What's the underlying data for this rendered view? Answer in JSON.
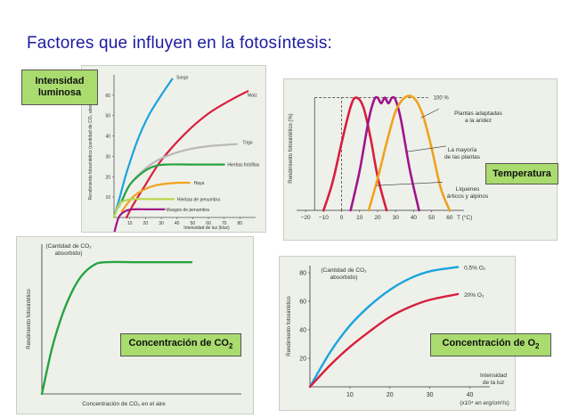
{
  "page": {
    "title": "Factores que influyen en la fotosíntesis:"
  },
  "tags": {
    "light": "Intensidad luminosa",
    "temperature": "Temperatura",
    "co2": "Concentración de CO",
    "co2_sub": "2",
    "o2": "Concentración de O",
    "o2_sub": "2"
  },
  "colors": {
    "tag_bg": "#a9db6e",
    "panel_bg": "#eef1ea",
    "blue": "#1aa3e0",
    "red": "#d81e3c",
    "gray": "#b9b9b9",
    "green": "#27a342",
    "orange": "#f0a21e",
    "lime": "#b9d64a",
    "purple": "#a0148a",
    "title": "#1a1aa0"
  },
  "chart_data": [
    {
      "id": "light",
      "type": "line",
      "ylabel": "Rendimiento fotosintético (cantidad de CO₂ absorbido)",
      "xlabel": "Intensidad de luz (klux)",
      "xlim": [
        0,
        90
      ],
      "ylim": [
        0,
        70
      ],
      "xticks": [
        10,
        20,
        30,
        40,
        50,
        60,
        70,
        80
      ],
      "yticks": [
        10,
        20,
        30,
        40,
        50,
        60
      ],
      "series": [
        {
          "name": "Sorgo",
          "color": "blue",
          "points": [
            [
              0,
              0
            ],
            [
              3,
              8
            ],
            [
              8,
              22
            ],
            [
              15,
              38
            ],
            [
              22,
              50
            ],
            [
              30,
              60
            ],
            [
              37,
              68
            ]
          ]
        },
        {
          "name": "Maíz",
          "color": "red",
          "points": [
            [
              8,
              0
            ],
            [
              12,
              6
            ],
            [
              20,
              16
            ],
            [
              30,
              28
            ],
            [
              45,
              41
            ],
            [
              60,
              51
            ],
            [
              75,
              58
            ],
            [
              85,
              62
            ]
          ]
        },
        {
          "name": "Trigo",
          "color": "gray",
          "points": [
            [
              3,
              5
            ],
            [
              10,
              16
            ],
            [
              20,
              24
            ],
            [
              30,
              29
            ],
            [
              45,
              33
            ],
            [
              60,
              35
            ],
            [
              78,
              36
            ]
          ]
        },
        {
          "name": "Hierbas fotófilas",
          "color": "green",
          "points": [
            [
              5,
              8
            ],
            [
              10,
              16
            ],
            [
              18,
              22
            ],
            [
              25,
              25
            ],
            [
              33,
              26
            ],
            [
              50,
              26
            ],
            [
              70,
              26
            ]
          ]
        },
        {
          "name": "Haya",
          "color": "orange",
          "points": [
            [
              5,
              3
            ],
            [
              12,
              10
            ],
            [
              20,
              14
            ],
            [
              28,
              16
            ],
            [
              40,
              17
            ],
            [
              48,
              17
            ]
          ]
        },
        {
          "name": "Hierbas de penumbra",
          "color": "lime",
          "points": [
            [
              0,
              0
            ],
            [
              3,
              6
            ],
            [
              6,
              8
            ],
            [
              12,
              9
            ],
            [
              25,
              9
            ],
            [
              38,
              9
            ]
          ]
        },
        {
          "name": "Musgos de penumbra",
          "color": "purple",
          "points": [
            [
              0,
              -8
            ],
            [
              3,
              0
            ],
            [
              7,
              3
            ],
            [
              12,
              4
            ],
            [
              22,
              4
            ],
            [
              32,
              4
            ]
          ]
        }
      ]
    },
    {
      "id": "temperature",
      "type": "line",
      "ylabel": "Rendimiento fotosintético (%)",
      "xlabel": "T (°C)",
      "xlim": [
        -25,
        65
      ],
      "ylim": [
        0,
        110
      ],
      "xticks": [
        -20,
        -10,
        0,
        10,
        20,
        30,
        40,
        50,
        60
      ],
      "ref_line": {
        "y": 100,
        "label": "100 %"
      },
      "series": [
        {
          "name": "Líquenes árticos y alpinos",
          "color": "red",
          "points": [
            [
              -10,
              0
            ],
            [
              -5,
              25
            ],
            [
              0,
              60
            ],
            [
              5,
              92
            ],
            [
              8,
              100
            ],
            [
              12,
              92
            ],
            [
              16,
              65
            ],
            [
              20,
              30
            ],
            [
              25,
              0
            ]
          ]
        },
        {
          "name": "La mayoría de las plantas",
          "color": "purple",
          "points": [
            [
              5,
              0
            ],
            [
              10,
              35
            ],
            [
              15,
              80
            ],
            [
              18,
              98
            ],
            [
              20,
              100
            ],
            [
              22,
              95
            ],
            [
              24,
              100
            ],
            [
              26,
              95
            ],
            [
              28,
              100
            ],
            [
              30,
              98
            ],
            [
              33,
              80
            ],
            [
              38,
              35
            ],
            [
              43,
              0
            ]
          ]
        },
        {
          "name": "Plantas adaptadas a la aridez",
          "color": "orange",
          "points": [
            [
              15,
              0
            ],
            [
              20,
              28
            ],
            [
              25,
              60
            ],
            [
              30,
              88
            ],
            [
              35,
              100
            ],
            [
              40,
              100
            ],
            [
              45,
              85
            ],
            [
              50,
              55
            ],
            [
              55,
              20
            ],
            [
              60,
              0
            ]
          ]
        }
      ],
      "labels": [
        "Plantas adaptadas",
        "a la aridez",
        "La mayoría",
        "de las plantas",
        "Líquenes",
        "árticos y alpinos"
      ]
    },
    {
      "id": "co2",
      "type": "line",
      "ylabel": "Rendimiento fotosintético",
      "xlabel": "Concentración de CO₂ en el aire",
      "annotation": "(Cantidad de CO₂ absorbido)",
      "xlim": [
        0,
        100
      ],
      "ylim": [
        0,
        100
      ],
      "series": [
        {
          "name": "CO2",
          "color": "green",
          "points": [
            [
              0,
              0
            ],
            [
              5,
              30
            ],
            [
              10,
              52
            ],
            [
              15,
              68
            ],
            [
              20,
              79
            ],
            [
              26,
              86
            ],
            [
              32,
              88
            ],
            [
              50,
              88
            ],
            [
              75,
              88
            ]
          ]
        }
      ]
    },
    {
      "id": "o2",
      "type": "line",
      "ylabel": "Rendimiento fotosintético",
      "xlabel": "Intensidad de la luz",
      "xunit": "(x10⁴ en erg/cm²/s)",
      "annotation": "(Cantidad de CO₂ absorbido)",
      "xlim": [
        0,
        45
      ],
      "ylim": [
        0,
        85
      ],
      "xticks": [
        10,
        20,
        30,
        40
      ],
      "yticks": [
        20,
        40,
        60,
        80
      ],
      "series": [
        {
          "name": "0,5% O₂",
          "color": "blue",
          "points": [
            [
              0,
              0
            ],
            [
              5,
              24
            ],
            [
              10,
              43
            ],
            [
              15,
              57
            ],
            [
              20,
              68
            ],
            [
              25,
              76
            ],
            [
              30,
              81
            ],
            [
              37,
              84
            ]
          ]
        },
        {
          "name": "20% O₂",
          "color": "red",
          "points": [
            [
              0,
              0
            ],
            [
              5,
              15
            ],
            [
              10,
              28
            ],
            [
              15,
              39
            ],
            [
              20,
              49
            ],
            [
              25,
              56
            ],
            [
              30,
              61
            ],
            [
              37,
              65
            ]
          ]
        }
      ]
    }
  ]
}
